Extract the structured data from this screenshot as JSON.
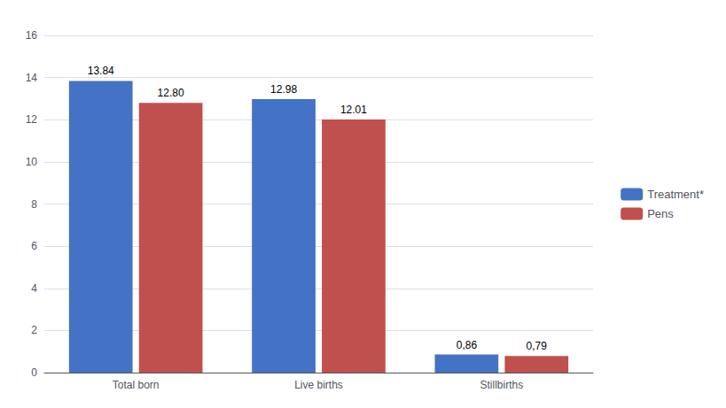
{
  "chart_data": {
    "type": "bar",
    "categories": [
      "Total born",
      "Live births",
      "Stillbirths"
    ],
    "series": [
      {
        "name": "Treatment*",
        "color": "#4472C4",
        "values": [
          13.84,
          12.98,
          0.86
        ],
        "value_labels": [
          "13.84",
          "12.98",
          "0,86"
        ]
      },
      {
        "name": "Pens",
        "color": "#C0504D",
        "values": [
          12.8,
          12.01,
          0.79
        ],
        "value_labels": [
          "12.80",
          "12.01",
          "0,79"
        ]
      }
    ],
    "ylim": [
      0,
      16
    ],
    "yticks": [
      0,
      2,
      4,
      6,
      8,
      10,
      12,
      14,
      16
    ],
    "grid": true,
    "legend": "right",
    "data_labels": true
  }
}
